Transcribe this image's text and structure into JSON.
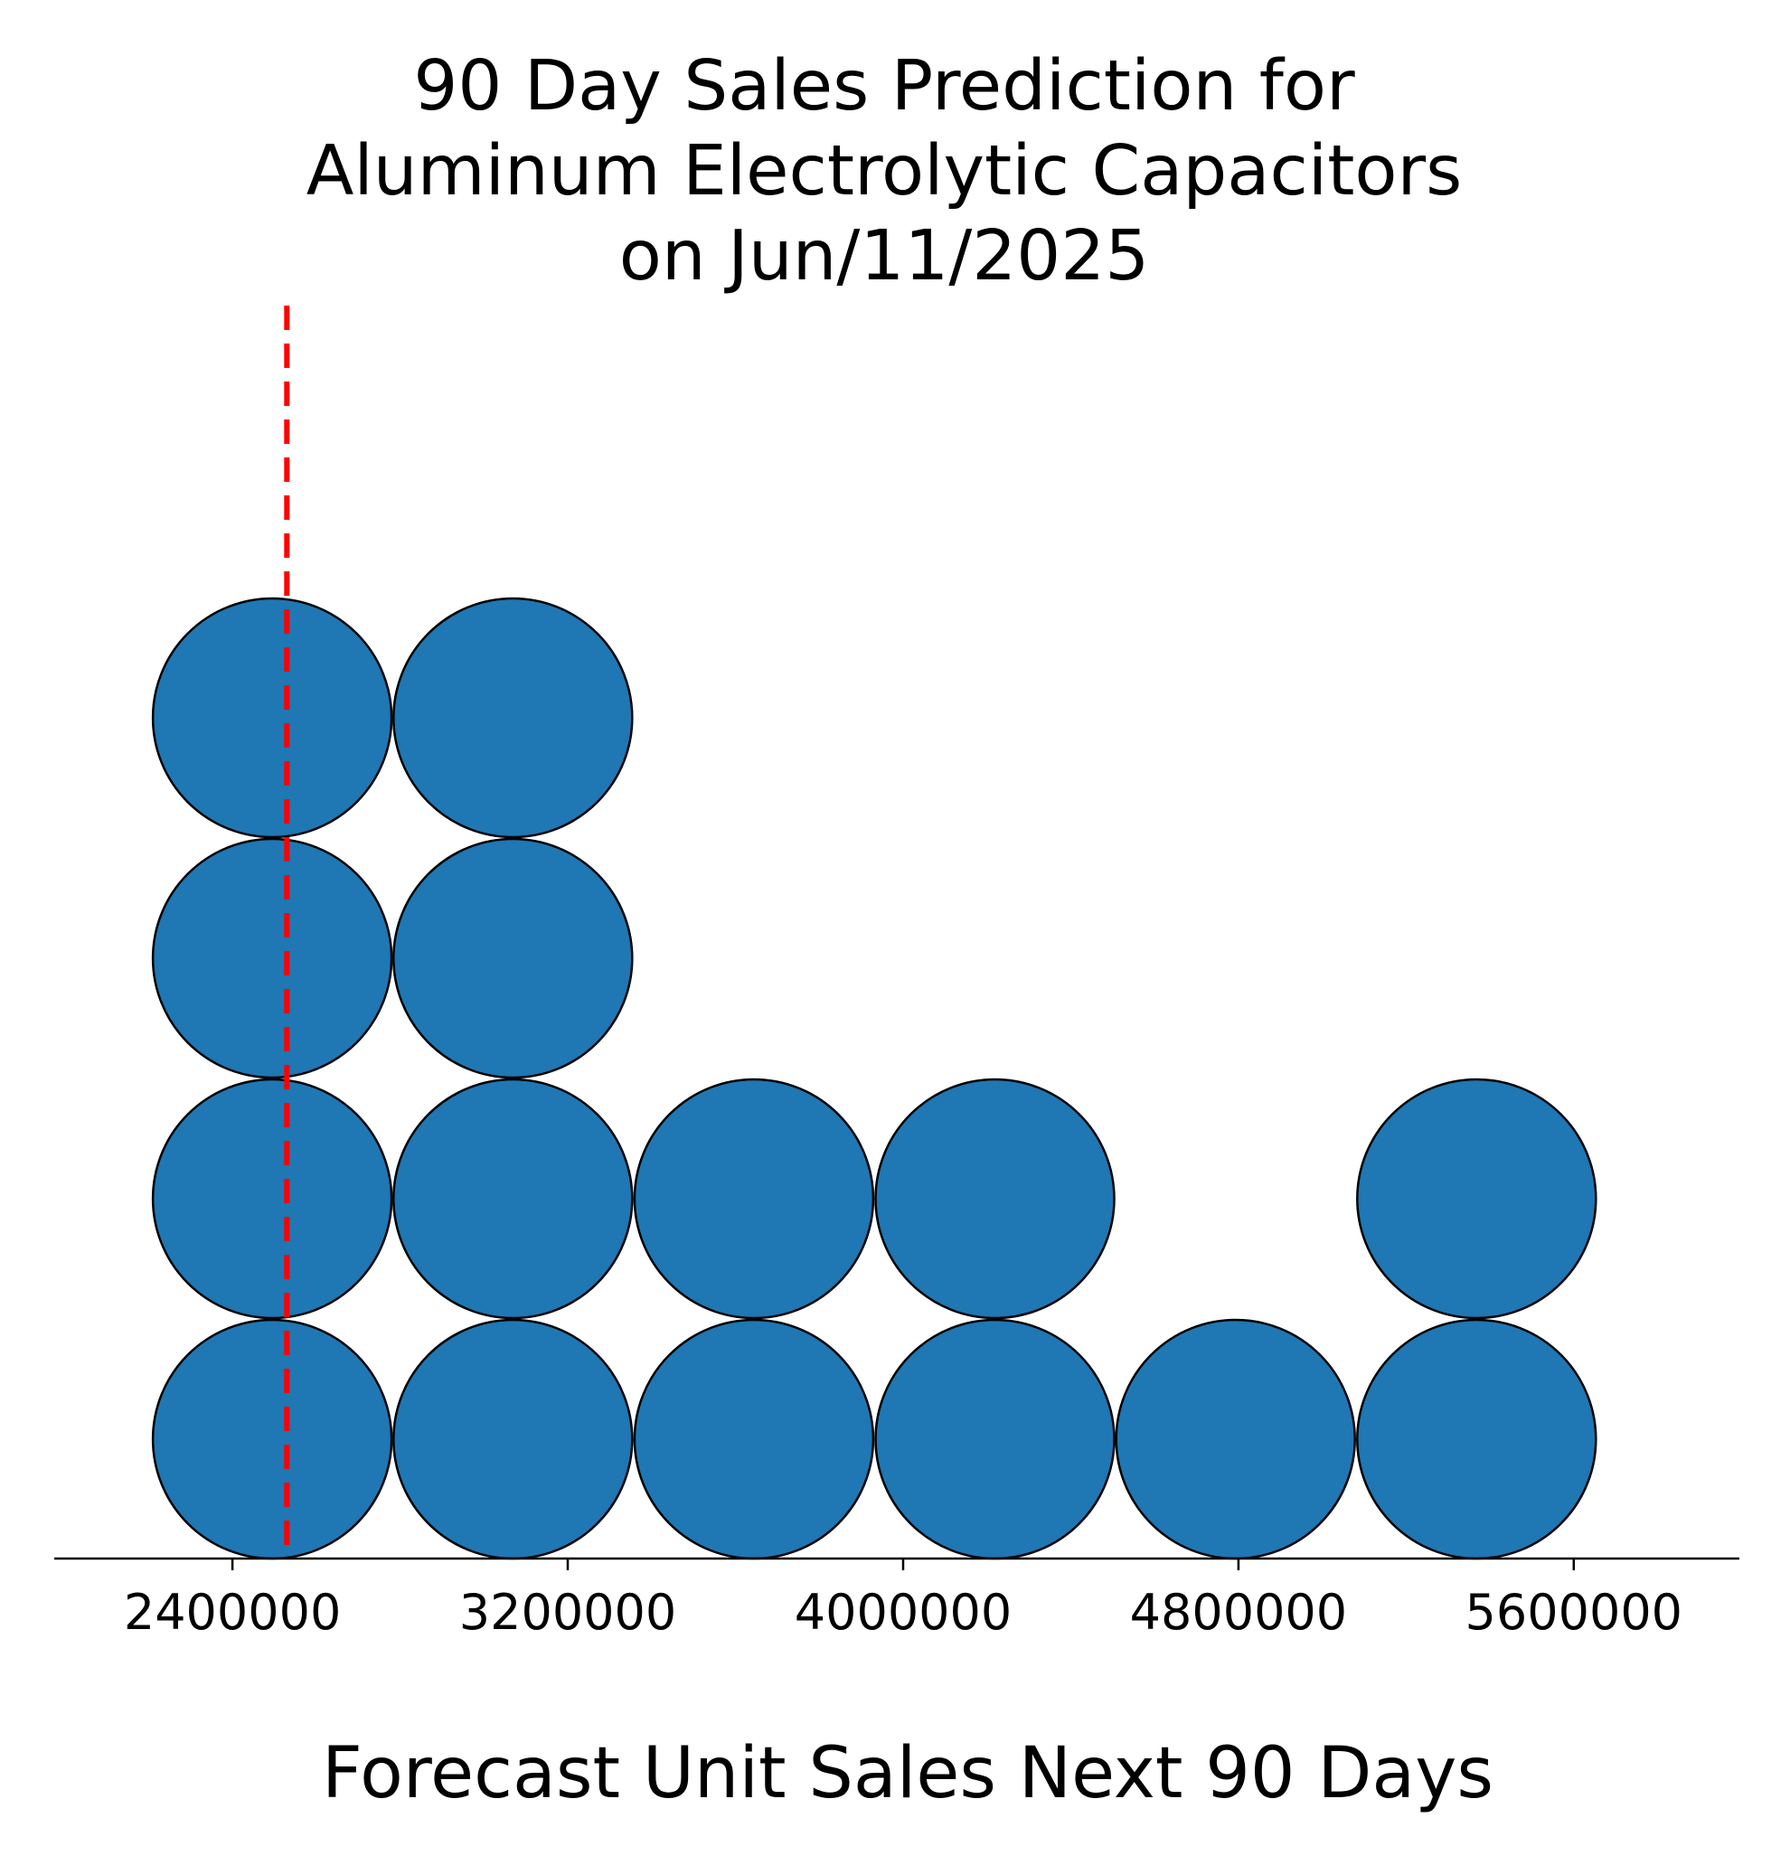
{
  "chart_data": {
    "type": "dot",
    "title": [
      "90 Day Sales Prediction for",
      "Aluminum Electrolytic Capacitors",
      "on Jun/11/2025"
    ],
    "xlabel": "Forecast Unit Sales Next 90 Days",
    "ylabel": "",
    "x_ticks": [
      2400000,
      3200000,
      4000000,
      4800000,
      5600000
    ],
    "xlim": [
      1975000,
      5995000
    ],
    "bins": [
      {
        "x": 2495000,
        "count": 4
      },
      {
        "x": 3069000,
        "count": 4
      },
      {
        "x": 3644000,
        "count": 2
      },
      {
        "x": 4219000,
        "count": 2
      },
      {
        "x": 4793000,
        "count": 1
      },
      {
        "x": 5368000,
        "count": 2
      }
    ],
    "reference_line": {
      "x": 2530000,
      "style": "dashed",
      "color": "#ff0000"
    },
    "dot_color": "#1f77b4",
    "dot_edge_color": "#000000",
    "grid": false,
    "y_axis_visible": false
  }
}
